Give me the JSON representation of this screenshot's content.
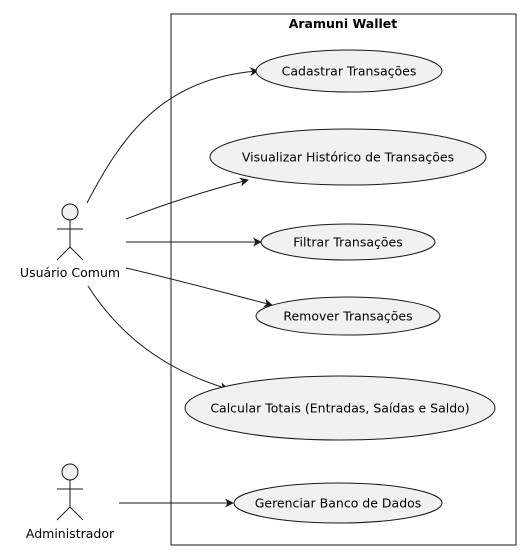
{
  "system": {
    "title": "Aramuni Wallet"
  },
  "actors": [
    {
      "id": "usuario",
      "name": "Usuário Comum"
    },
    {
      "id": "admin",
      "name": "Administrador"
    }
  ],
  "use_cases": [
    {
      "id": "uc1",
      "label": "Cadastrar Transações"
    },
    {
      "id": "uc2",
      "label": "Visualizar Histórico de Transações"
    },
    {
      "id": "uc3",
      "label": "Filtrar Transações"
    },
    {
      "id": "uc4",
      "label": "Remover Transações"
    },
    {
      "id": "uc5",
      "label": "Calcular Totais (Entradas, Saídas e Saldo)"
    },
    {
      "id": "uc6",
      "label": "Gerenciar Banco de Dados"
    }
  ],
  "associations": [
    {
      "from": "usuario",
      "to": "uc1"
    },
    {
      "from": "usuario",
      "to": "uc2"
    },
    {
      "from": "usuario",
      "to": "uc3"
    },
    {
      "from": "usuario",
      "to": "uc4"
    },
    {
      "from": "usuario",
      "to": "uc5"
    },
    {
      "from": "admin",
      "to": "uc6"
    }
  ],
  "colors": {
    "actor_fill": "#f1f1f1",
    "actor_stroke": "#181818",
    "usecase_fill": "#f1f1f1",
    "usecase_stroke": "#181818",
    "boundary_stroke": "#181818",
    "edge_stroke": "#181818",
    "text": "#000000"
  }
}
